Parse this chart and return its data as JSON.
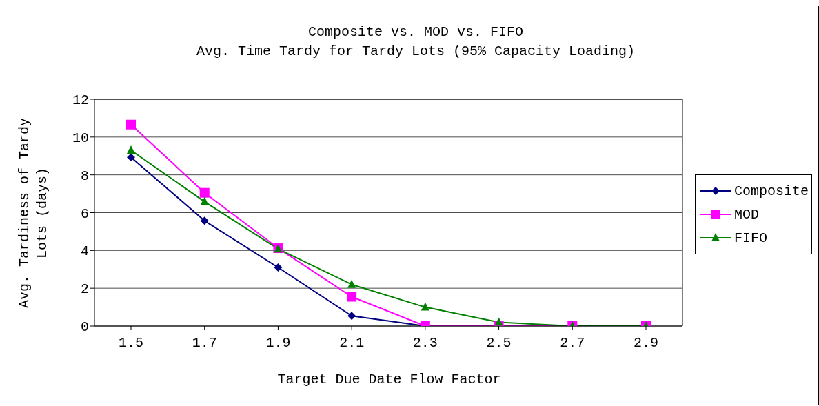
{
  "chart_data": {
    "type": "line",
    "title": "Composite vs. MOD vs. FIFO",
    "subtitle": "Avg. Time Tardy for Tardy Lots (95% Capacity Loading)",
    "xlabel": "Target Due Date Flow Factor",
    "ylabel": "Avg. Tardiness of Tardy Lots (days)",
    "categories": [
      "1.5",
      "1.7",
      "1.9",
      "2.1",
      "2.3",
      "2.5",
      "2.7",
      "2.9"
    ],
    "series": [
      {
        "name": "Composite",
        "color": "#000080",
        "marker": "diamond",
        "values": [
          8.93,
          5.57,
          3.1,
          0.54,
          0,
          0,
          null,
          null
        ]
      },
      {
        "name": "MOD",
        "color": "#ff00ff",
        "marker": "square",
        "values": [
          10.66,
          7.05,
          4.12,
          1.55,
          0,
          0,
          0,
          0
        ]
      },
      {
        "name": "FIFO",
        "color": "#008000",
        "marker": "triangle",
        "values": [
          9.3,
          6.58,
          4.08,
          2.2,
          1.0,
          0.2,
          0,
          0
        ]
      }
    ],
    "ylim": [
      0,
      12
    ],
    "yticks": [
      0,
      2,
      4,
      6,
      8,
      10,
      12
    ],
    "grid": "y",
    "legend": "right",
    "line_style": "solid"
  }
}
